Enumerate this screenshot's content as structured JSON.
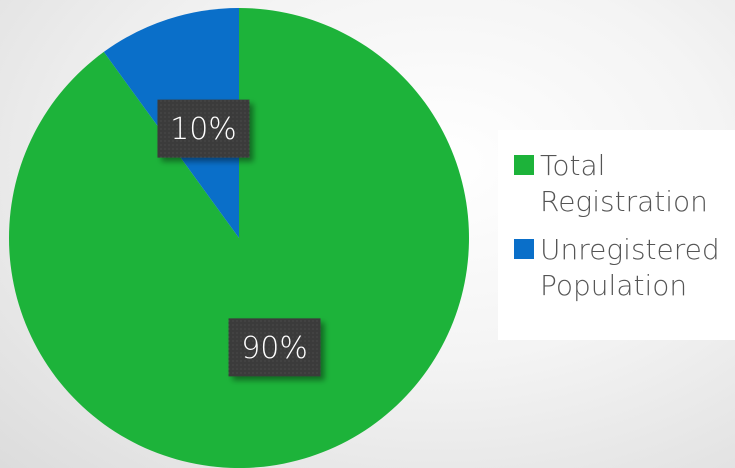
{
  "chart_data": {
    "type": "pie",
    "categories": [
      "Total Registration",
      "Unregistered Population"
    ],
    "values": [
      90,
      10
    ],
    "value_labels": [
      "90%",
      "10%"
    ],
    "colors": [
      "#1db33a",
      "#0a6fc9"
    ],
    "legend": "right"
  }
}
